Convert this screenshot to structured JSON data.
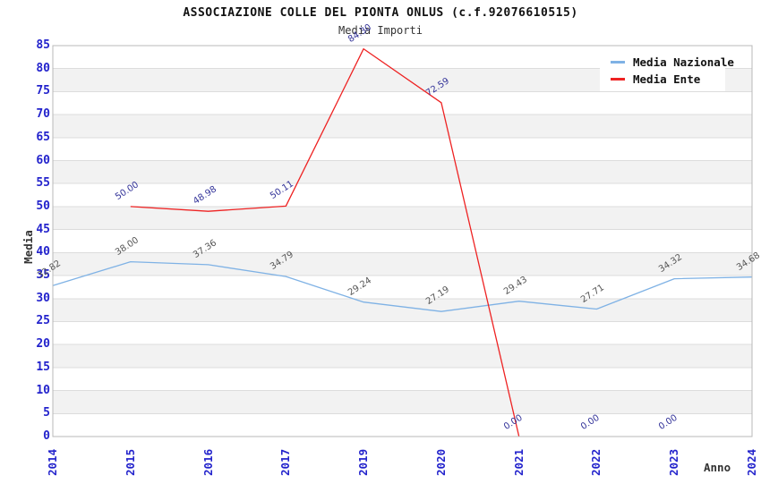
{
  "chart_data": {
    "type": "line",
    "title": "ASSOCIAZIONE COLLE DEL PIONTA ONLUS (c.f.92076610515)",
    "subtitle": "Media Importi",
    "xlabel": "Anno",
    "ylabel": "Media",
    "ylim": [
      0,
      85
    ],
    "ytick_step": 5,
    "ytick_labels": [
      "0",
      "5",
      "10",
      "15",
      "20",
      "25",
      "30",
      "35",
      "40",
      "45",
      "50",
      "55",
      "60",
      "65",
      "70",
      "75",
      "80",
      "85"
    ],
    "categories": [
      "2014",
      "2015",
      "2016",
      "2017",
      "2019",
      "2020",
      "2021",
      "2022",
      "2023",
      "2024"
    ],
    "series": [
      {
        "name": "Media Nazionale",
        "color": "#7fb2e5",
        "label_color": "#555555",
        "values": [
          32.82,
          38.0,
          37.36,
          34.79,
          29.24,
          27.19,
          29.43,
          27.71,
          34.32,
          34.68
        ],
        "point_labels": [
          "32.82",
          "38.00",
          "37.36",
          "34.79",
          "29.24",
          "27.19",
          "29.43",
          "27.71",
          "34.32",
          "34.68"
        ]
      },
      {
        "name": "Media Ente",
        "color": "#ee2222",
        "label_color": "#333399",
        "values": [
          null,
          50.0,
          48.98,
          50.11,
          84.3,
          72.59,
          0.0,
          0.0,
          0.0,
          null
        ],
        "point_labels": [
          null,
          "50.00",
          "48.98",
          "50.11",
          "84.30",
          "72.59",
          "0.00",
          "0.00",
          "0.00",
          null
        ]
      }
    ],
    "legend_position": "top-right",
    "grid": {
      "bands": true,
      "band_color": "#f2f2f2",
      "grid_line_color": "#dcdcdc",
      "border_color": "#b8b8b8",
      "vertical_gridlines": false
    },
    "tick_label_color": "#2323cc"
  }
}
